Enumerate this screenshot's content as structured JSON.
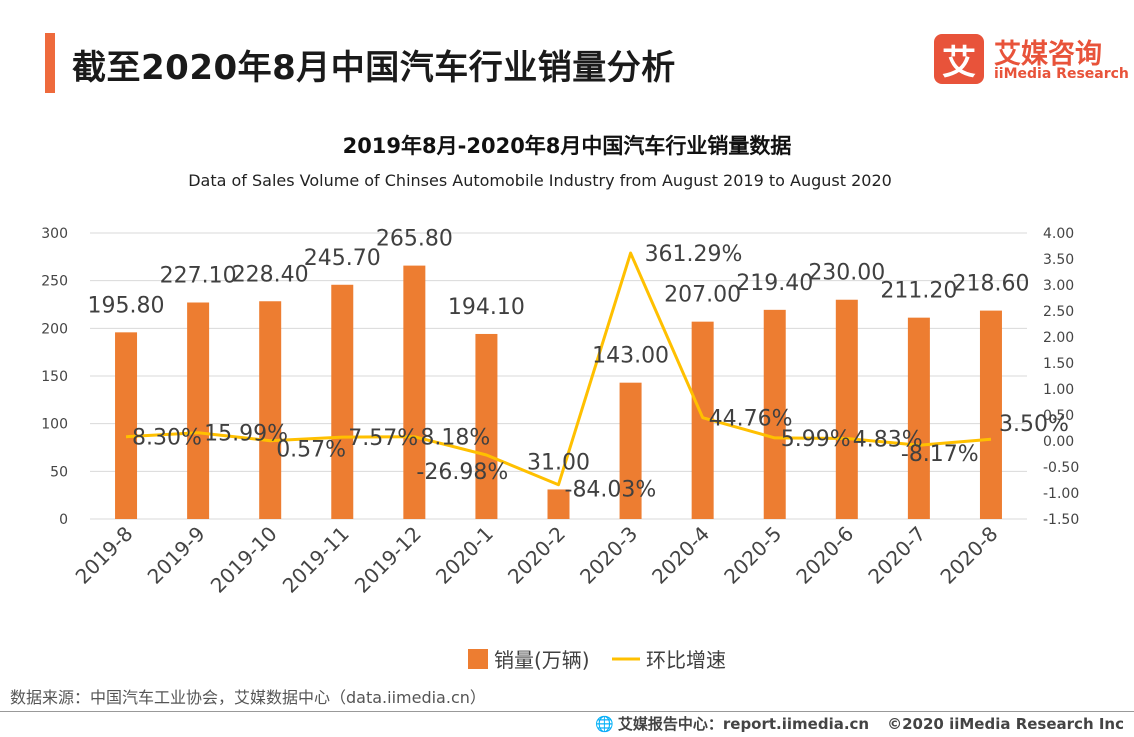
{
  "header": {
    "title": "截至2020年8月中国汽车行业销量分析"
  },
  "logo": {
    "mark": "艾",
    "cn": "艾媒咨询",
    "en": "iiMedia Research"
  },
  "chart_data": {
    "type": "bar",
    "title": "2019年8月-2020年8月中国汽车行业销量数据",
    "subtitle": "Data of Sales Volume of Chinses Automobile Industry from August 2019 to  August  2020",
    "categories": [
      "2019-8",
      "2019-9",
      "2019-10",
      "2019-11",
      "2019-12",
      "2020-1",
      "2020-2",
      "2020-3",
      "2020-4",
      "2020-5",
      "2020-6",
      "2020-7",
      "2020-8"
    ],
    "series": [
      {
        "name": "销量(万辆)",
        "type": "bar",
        "axis": "left",
        "color": "#ed7d31",
        "values": [
          195.8,
          227.1,
          228.4,
          245.7,
          265.8,
          194.1,
          31.0,
          143.0,
          207.0,
          219.4,
          230.0,
          211.2,
          218.6
        ],
        "labels": [
          "195.80",
          "227.10",
          "228.40",
          "245.70",
          "265.80",
          "194.10",
          "31.00",
          "143.00",
          "207.00",
          "219.40",
          "230.00",
          "211.20",
          "218.60"
        ]
      },
      {
        "name": "环比增速",
        "type": "line",
        "axis": "right",
        "color": "#ffc000",
        "values": [
          0.083,
          0.1599,
          0.0057,
          0.0757,
          0.0818,
          -0.2698,
          -0.8403,
          3.6129,
          0.4476,
          0.0599,
          0.0483,
          -0.0817,
          0.035
        ],
        "labels": [
          "8.30%",
          "15.99%",
          "0.57%",
          "7.57%",
          "8.18%",
          "-26.98%",
          "-84.03%",
          "361.29%",
          "44.76%",
          "5.99%",
          "4.83%",
          "-8.17%",
          "3.50%"
        ]
      }
    ],
    "y_left": {
      "min": 0,
      "max": 300,
      "ticks": [
        "0",
        "50",
        "100",
        "150",
        "200",
        "250",
        "300"
      ]
    },
    "y_right": {
      "min": -1.5,
      "max": 4.0,
      "ticks": [
        "-1.50",
        "-1.00",
        "-0.50",
        "0.00",
        "0.50",
        "1.00",
        "1.50",
        "2.00",
        "2.50",
        "3.00",
        "3.50",
        "4.00"
      ]
    },
    "grid": true,
    "legend": "bottom-center"
  },
  "source": "数据来源：中国汽车工业协会，艾媒数据中心（data.iimedia.cn）",
  "footer": {
    "report": "艾媒报告中心：report.iimedia.cn",
    "copyright": "©2020  iiMedia Research  Inc"
  }
}
